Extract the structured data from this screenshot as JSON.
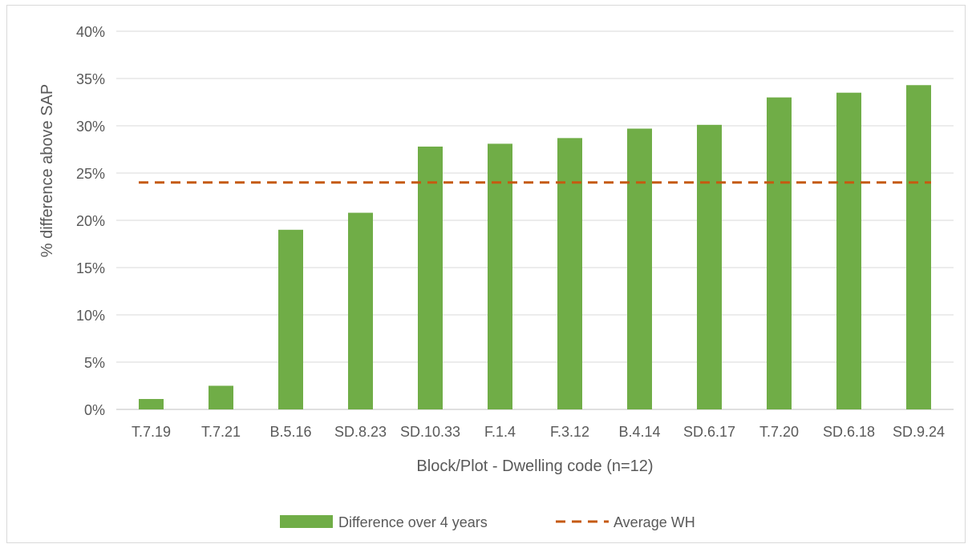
{
  "chart_data": {
    "type": "bar",
    "title": "",
    "xlabel": "Block/Plot - Dwelling code (n=12)",
    "ylabel": "% difference above SAP",
    "ylim": [
      0,
      40
    ],
    "yticks": [
      0,
      5,
      10,
      15,
      20,
      25,
      30,
      35,
      40
    ],
    "ytick_suffix": "%",
    "grid": true,
    "legend_position": "bottom",
    "categories": [
      "T.7.19",
      "T.7.21",
      "B.5.16",
      "SD.8.23",
      "SD.10.33",
      "F.1.4",
      "F.3.12",
      "B.4.14",
      "SD.6.17",
      "T.7.20",
      "SD.6.18",
      "SD.9.24"
    ],
    "series": [
      {
        "name": "Difference over 4 years",
        "kind": "bar",
        "color": "#70ad47",
        "values": [
          1.1,
          2.5,
          19.0,
          20.8,
          27.8,
          28.1,
          28.7,
          29.7,
          30.1,
          33.0,
          33.5,
          34.3
        ]
      },
      {
        "name": "Average WH",
        "kind": "line-dashed",
        "color": "#c55a11",
        "value": 24.0
      }
    ],
    "colors": {
      "grid": "#d9d9d9",
      "axis": "#bfbfbf",
      "text": "#595959"
    }
  }
}
